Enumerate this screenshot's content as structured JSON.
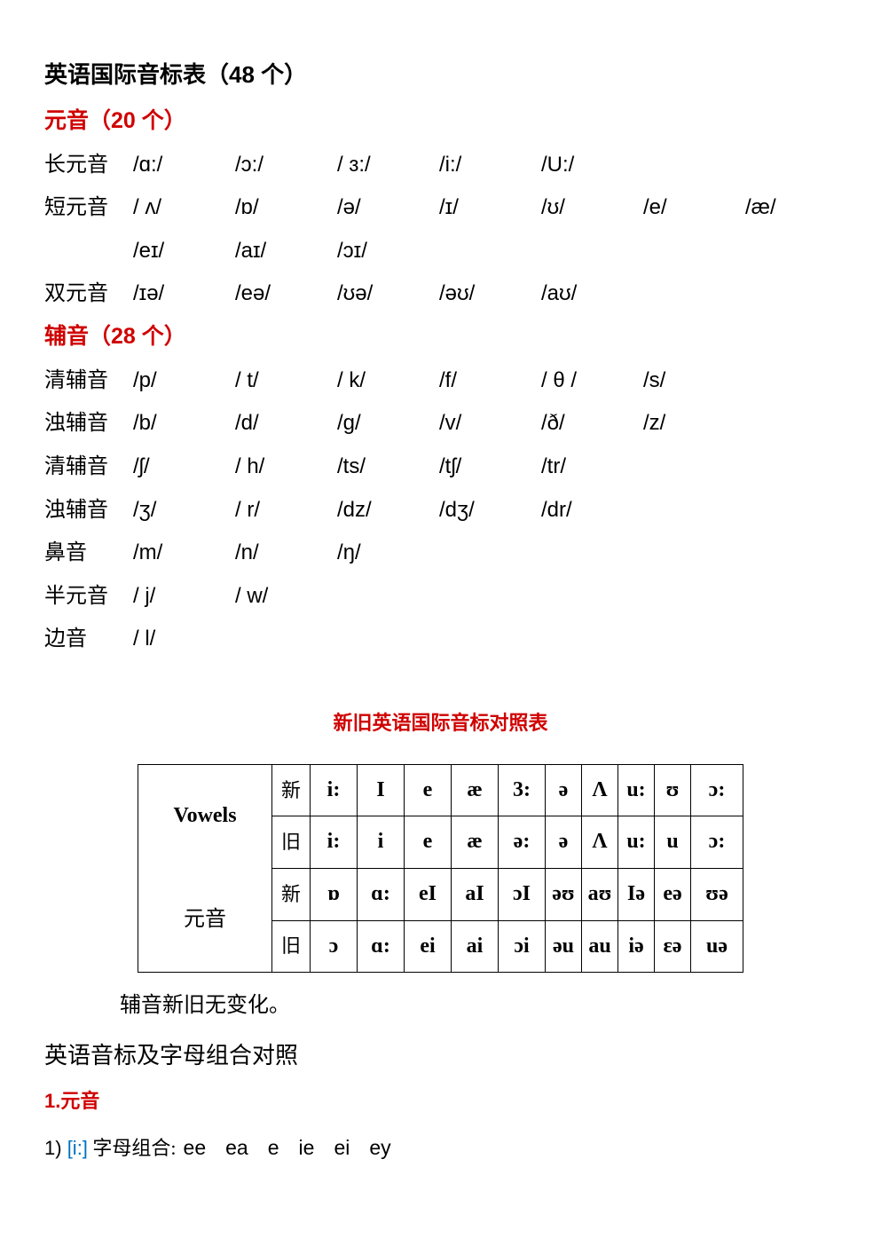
{
  "title": "英语国际音标表（48 个）",
  "vowelsHeader": "元音（20 个）",
  "consonantsHeader": "辅音（28 个）",
  "rows": [
    {
      "label": "长元音",
      "items": [
        "/ɑ:/",
        "/ɔ:/",
        "/ ɜ:/",
        "/i:/",
        "/U:/"
      ]
    },
    {
      "label": "短元音",
      "items": [
        "/ ʌ/",
        "/ɒ/",
        "/ə/",
        "/ɪ/",
        "/ʊ/",
        "/e/",
        "/æ/"
      ]
    },
    {
      "label": "",
      "items": [
        "/eɪ/",
        "/aɪ/",
        "/ɔɪ/"
      ]
    },
    {
      "label": "双元音",
      "items": [
        "/ɪə/",
        "/eə/",
        "/ʊə/",
        "/əʊ/",
        "/aʊ/"
      ]
    }
  ],
  "crows": [
    {
      "label": "清辅音",
      "items": [
        "/p/",
        "/ t/",
        "/ k/",
        "/f/",
        "/ θ /",
        "/s/"
      ]
    },
    {
      "label": "浊辅音",
      "items": [
        "/b/",
        "/d/",
        "/g/",
        "/v/",
        "/ð/",
        "/z/"
      ]
    },
    {
      "label": "清辅音",
      "items": [
        "/ʃ/",
        "/ h/",
        "/ts/",
        "/tʃ/",
        "/tr/"
      ]
    },
    {
      "label": "浊辅音",
      "items": [
        "/ʒ/",
        "/ r/",
        "/dz/",
        "/dʒ/",
        "/dr/"
      ]
    },
    {
      "label": "鼻音",
      "items": [
        "/m/",
        "/n/",
        "/ŋ/"
      ]
    },
    {
      "label": "半元音",
      "items": [
        "/ j/",
        "/ w/"
      ]
    },
    {
      "label": " 边音",
      "items": [
        "/ l/"
      ]
    }
  ],
  "compareTitle": "新旧英语国际音标对照表",
  "sideLabel1": "Vowels",
  "sideLabel2": "元音",
  "tnew": "新",
  "told": "旧",
  "tableRows": [
    [
      "i:",
      "I",
      "e",
      "æ",
      "3:",
      "ə",
      "Λ",
      "u:",
      "ʊ",
      "ɔ:"
    ],
    [
      "i:",
      "i",
      "e",
      "æ",
      "ə:",
      "ə",
      "Λ",
      "u:",
      "u",
      "ɔ:"
    ],
    [
      "ɒ",
      "ɑ:",
      "eI",
      "aI",
      "ɔI",
      "əʊ",
      "aʊ",
      "Iə",
      "eə",
      "ʊə"
    ],
    [
      "ɔ",
      "ɑ:",
      "ei",
      "ai",
      "ɔi",
      "əu",
      "au",
      "iə",
      "ɛə",
      "uə"
    ]
  ],
  "note": "辅音新旧无变化。",
  "section2": "英语音标及字母组合对照",
  "subYuan": "1.元音",
  "line1_num": "1) ",
  "line1_ipa": "[i:]",
  "line1_label": "  字母组合:",
  "letters": [
    "ee",
    "ea",
    "e",
    "ie",
    "ei",
    "ey"
  ]
}
